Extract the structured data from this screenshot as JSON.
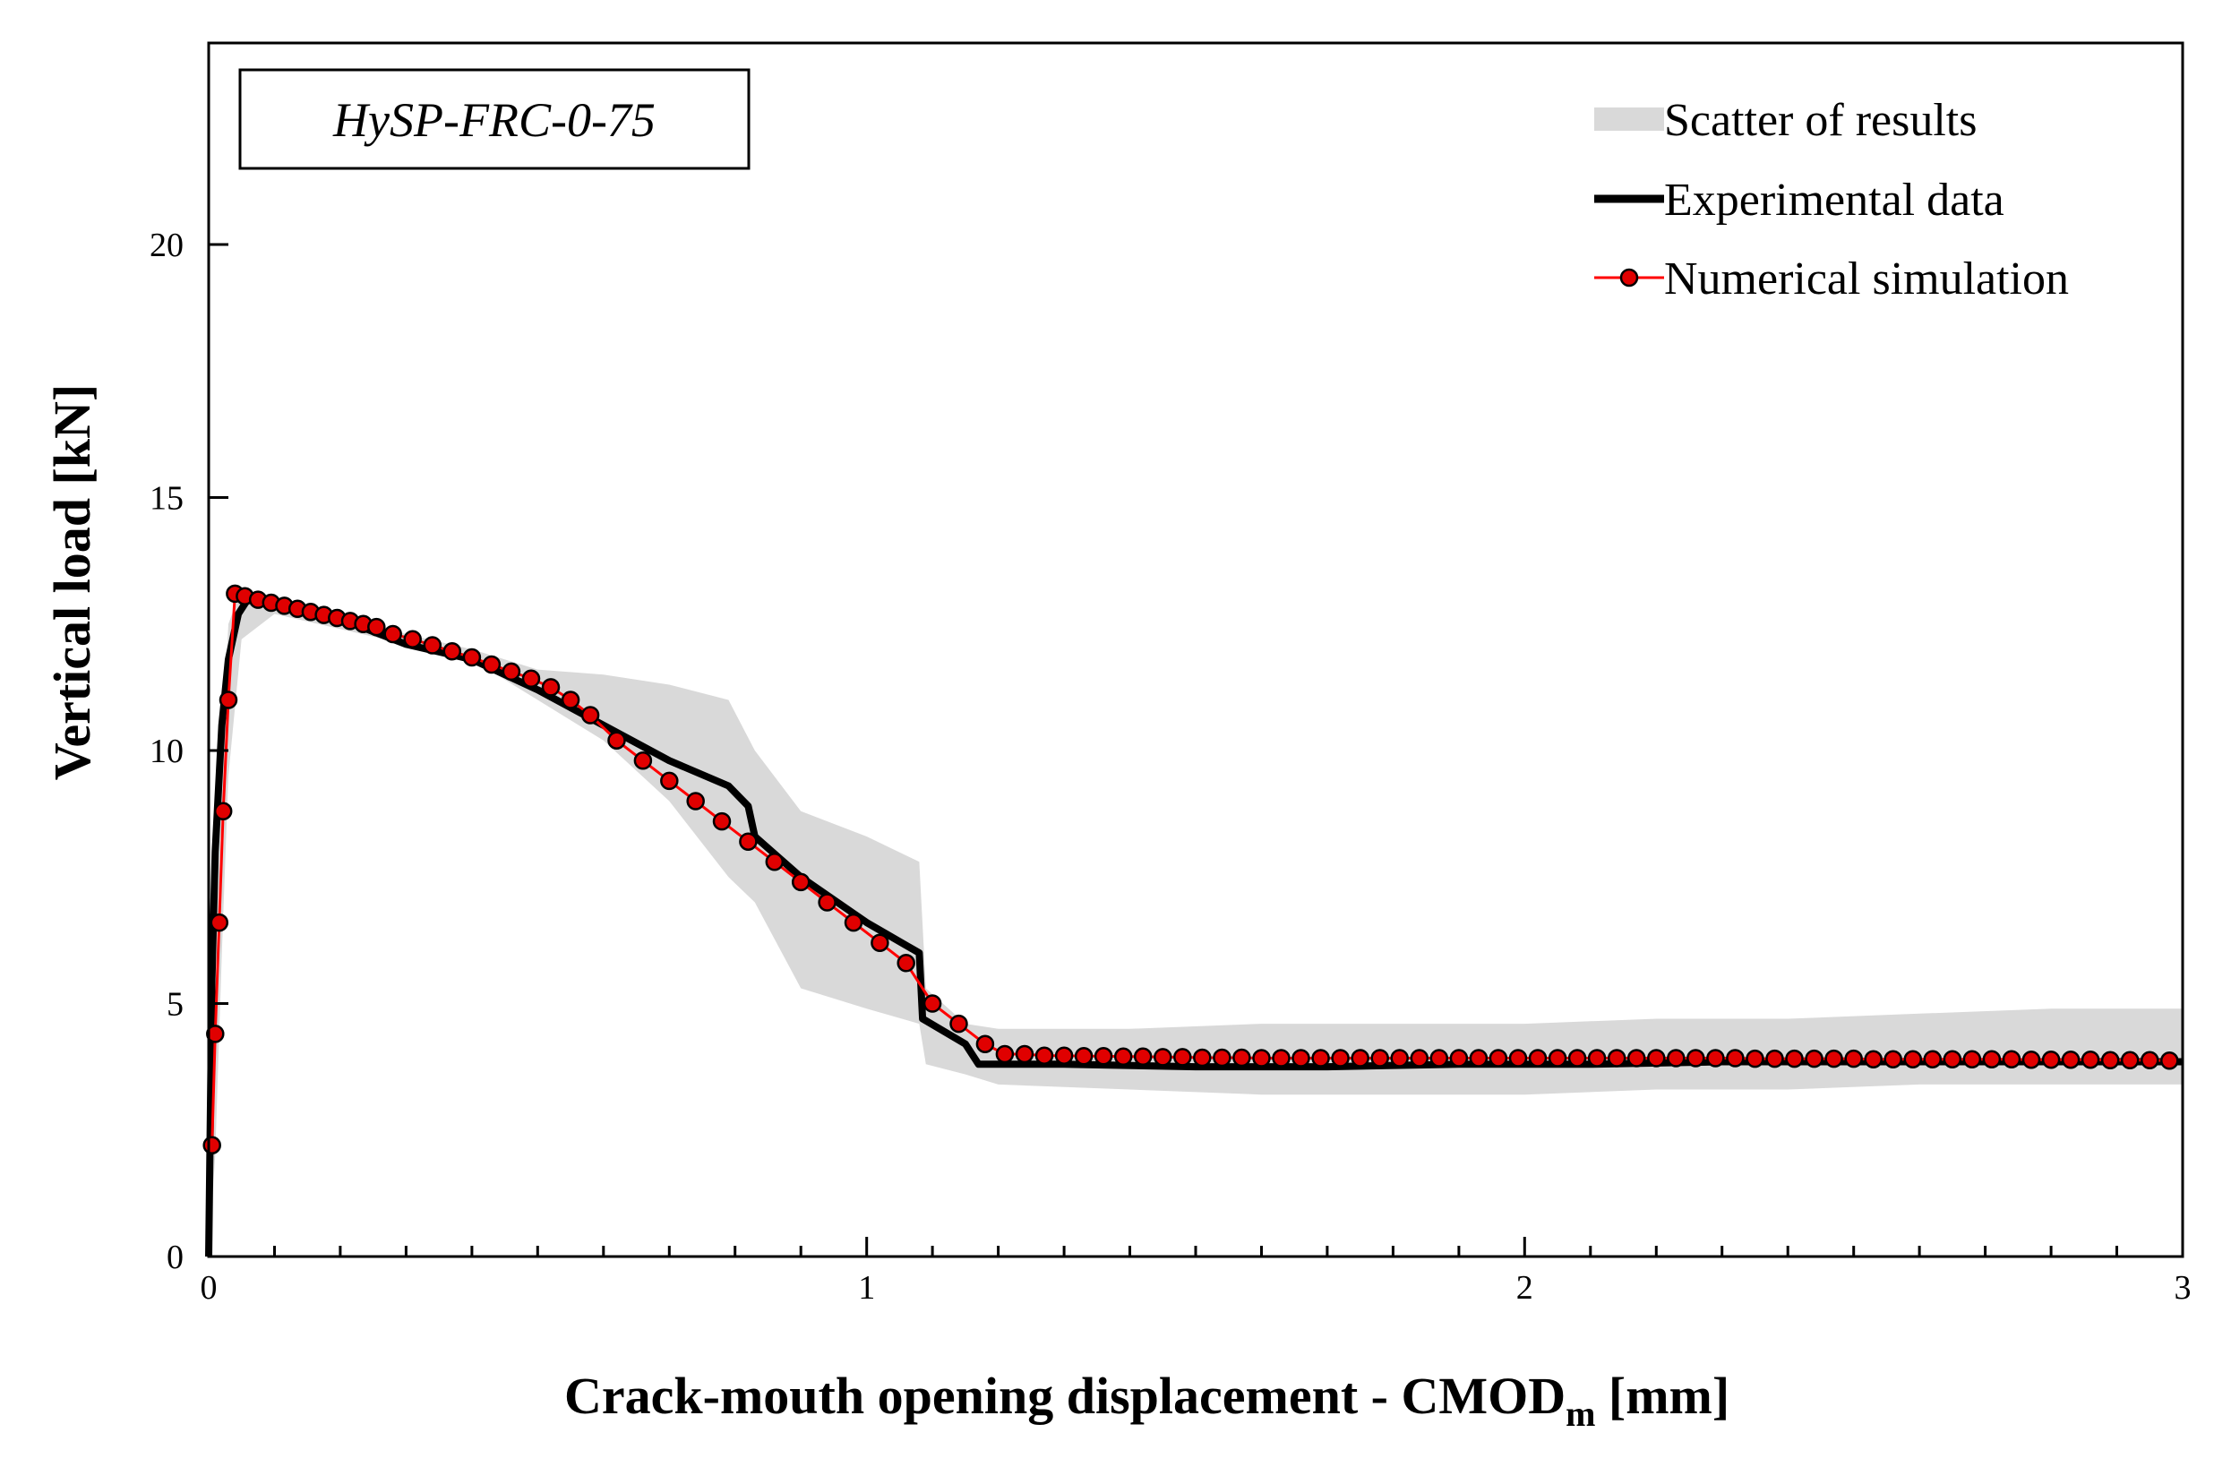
{
  "chart_data": {
    "type": "line",
    "label_box": "HySP-FRC-0-75",
    "xlabel": "Crack-mouth opening displacement - CMOD",
    "xlabel_subscript": "m",
    "xlabel_suffix": " [mm]",
    "ylabel": "Vertical load [kN]",
    "xlim": [
      0,
      3
    ],
    "ylim": [
      0,
      24
    ],
    "x_ticks": [
      0,
      1,
      2,
      3
    ],
    "y_ticks": [
      0,
      5,
      10,
      15,
      20
    ],
    "x_tick_labels": [
      "0",
      "1",
      "2",
      "3"
    ],
    "y_tick_labels": [
      "0",
      "5",
      "10",
      "15",
      "20"
    ],
    "grid": false,
    "legend_position": "top-right",
    "colors": {
      "scatter": "#d9d9d9",
      "experimental": "#000000",
      "numerical_line": "#ff0000",
      "numerical_marker": "#e00000"
    },
    "series": [
      {
        "name": "Scatter of results",
        "style": "band",
        "x": [
          0,
          0.01,
          0.02,
          0.03,
          0.05,
          0.1,
          0.2,
          0.3,
          0.4,
          0.5,
          0.6,
          0.7,
          0.79,
          0.83,
          0.9,
          1.0,
          1.08,
          1.09,
          1.15,
          1.2,
          1.4,
          1.6,
          1.8,
          2.0,
          2.2,
          2.4,
          2.6,
          2.8,
          3.0
        ],
        "upper": [
          0,
          5.0,
          10.0,
          12.5,
          13.2,
          13.0,
          12.7,
          12.3,
          12.0,
          11.6,
          11.5,
          11.3,
          11.0,
          10.0,
          8.8,
          8.3,
          7.8,
          5.3,
          4.6,
          4.5,
          4.5,
          4.6,
          4.6,
          4.6,
          4.7,
          4.7,
          4.8,
          4.9,
          4.9
        ],
        "lower": [
          0,
          2.0,
          6.0,
          9.5,
          12.2,
          12.7,
          12.4,
          12.1,
          11.8,
          11.0,
          10.2,
          9.0,
          7.5,
          7.0,
          5.3,
          4.9,
          4.6,
          3.8,
          3.6,
          3.4,
          3.3,
          3.2,
          3.2,
          3.2,
          3.3,
          3.3,
          3.4,
          3.4,
          3.4
        ]
      },
      {
        "name": "Experimental data",
        "style": "line",
        "x": [
          0,
          0.005,
          0.01,
          0.02,
          0.03,
          0.045,
          0.06,
          0.1,
          0.2,
          0.3,
          0.4,
          0.5,
          0.6,
          0.7,
          0.79,
          0.82,
          0.83,
          0.9,
          1.0,
          1.08,
          1.085,
          1.15,
          1.17,
          1.3,
          1.5,
          1.7,
          1.9,
          2.1,
          2.3,
          2.5,
          2.7,
          2.9,
          3.0
        ],
        "y": [
          0,
          5.5,
          8.0,
          10.5,
          11.8,
          12.7,
          13.0,
          12.9,
          12.6,
          12.1,
          11.8,
          11.2,
          10.5,
          9.8,
          9.3,
          8.9,
          8.3,
          7.5,
          6.6,
          6.0,
          4.7,
          4.2,
          3.8,
          3.8,
          3.75,
          3.75,
          3.8,
          3.8,
          3.85,
          3.85,
          3.85,
          3.85,
          3.85
        ]
      },
      {
        "name": "Numerical simulation",
        "style": "line-markers",
        "x": [
          0.005,
          0.01,
          0.016,
          0.022,
          0.03,
          0.04,
          0.055,
          0.075,
          0.095,
          0.115,
          0.135,
          0.155,
          0.175,
          0.195,
          0.215,
          0.235,
          0.255,
          0.28,
          0.31,
          0.34,
          0.37,
          0.4,
          0.43,
          0.46,
          0.49,
          0.52,
          0.55,
          0.58,
          0.62,
          0.66,
          0.7,
          0.74,
          0.78,
          0.82,
          0.86,
          0.9,
          0.94,
          0.98,
          1.02,
          1.06,
          1.1,
          1.14,
          1.18,
          1.21,
          1.24,
          1.27,
          1.3,
          1.33,
          1.36,
          1.39,
          1.42,
          1.45,
          1.48,
          1.51,
          1.54,
          1.57,
          1.6,
          1.63,
          1.66,
          1.69,
          1.72,
          1.75,
          1.78,
          1.81,
          1.84,
          1.87,
          1.9,
          1.93,
          1.96,
          1.99,
          2.02,
          2.05,
          2.08,
          2.11,
          2.14,
          2.17,
          2.2,
          2.23,
          2.26,
          2.29,
          2.32,
          2.35,
          2.38,
          2.41,
          2.44,
          2.47,
          2.5,
          2.53,
          2.56,
          2.59,
          2.62,
          2.65,
          2.68,
          2.71,
          2.74,
          2.77,
          2.8,
          2.83,
          2.86,
          2.89,
          2.92,
          2.95,
          2.98
        ],
        "y": [
          2.2,
          4.4,
          6.6,
          8.8,
          11.0,
          13.1,
          13.05,
          12.98,
          12.92,
          12.86,
          12.8,
          12.74,
          12.68,
          12.62,
          12.56,
          12.5,
          12.44,
          12.3,
          12.2,
          12.08,
          11.96,
          11.84,
          11.7,
          11.56,
          11.42,
          11.25,
          11.0,
          10.7,
          10.2,
          9.8,
          9.4,
          9.0,
          8.6,
          8.2,
          7.8,
          7.4,
          7.0,
          6.6,
          6.2,
          5.8,
          5.0,
          4.6,
          4.2,
          4.0,
          4.0,
          3.97,
          3.97,
          3.96,
          3.96,
          3.95,
          3.95,
          3.94,
          3.94,
          3.93,
          3.93,
          3.93,
          3.92,
          3.92,
          3.92,
          3.92,
          3.92,
          3.92,
          3.92,
          3.92,
          3.92,
          3.92,
          3.92,
          3.92,
          3.92,
          3.92,
          3.92,
          3.92,
          3.92,
          3.92,
          3.92,
          3.92,
          3.92,
          3.92,
          3.92,
          3.92,
          3.92,
          3.91,
          3.91,
          3.91,
          3.91,
          3.91,
          3.91,
          3.9,
          3.9,
          3.9,
          3.9,
          3.9,
          3.9,
          3.9,
          3.9,
          3.89,
          3.89,
          3.89,
          3.89,
          3.88,
          3.88,
          3.88,
          3.87
        ]
      }
    ]
  }
}
